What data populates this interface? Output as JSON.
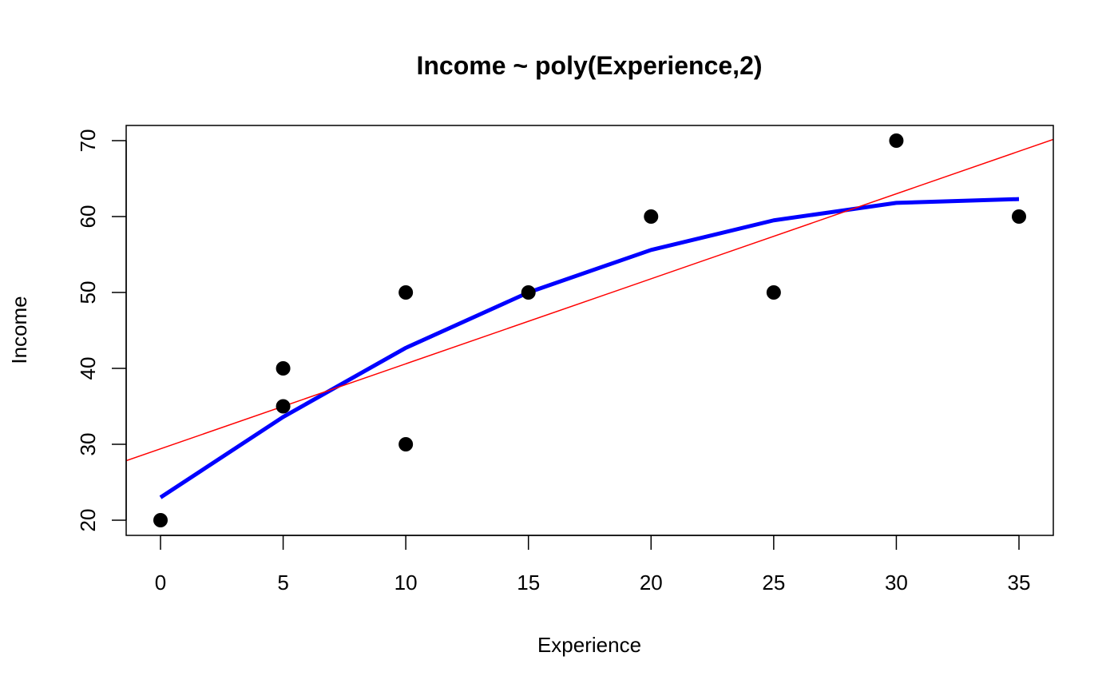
{
  "chart_data": {
    "type": "scatter",
    "title": "Income ~ poly(Experience,2)",
    "xlabel": "Experience",
    "ylabel": "Income",
    "xlim": [
      -1.4,
      36.4
    ],
    "ylim": [
      18,
      72
    ],
    "xticks": [
      0,
      5,
      10,
      15,
      20,
      25,
      30,
      35
    ],
    "yticks": [
      20,
      30,
      40,
      50,
      60,
      70
    ],
    "grid": false,
    "series": [
      {
        "kind": "points",
        "color": "#000000",
        "x": [
          0,
          5,
          5,
          10,
          10,
          15,
          20,
          25,
          30,
          35
        ],
        "y": [
          20,
          35,
          40,
          30,
          50,
          50,
          60,
          50,
          70,
          60
        ]
      },
      {
        "kind": "line",
        "color": "#0000ff",
        "x": [
          0,
          5,
          10,
          15,
          20,
          25,
          30,
          35
        ],
        "y": [
          23.0,
          33.6,
          42.7,
          50.0,
          55.6,
          59.5,
          61.8,
          62.3
        ]
      },
      {
        "kind": "abline",
        "color": "#ff0000",
        "intercept": 29.4,
        "slope": 1.12
      }
    ]
  }
}
